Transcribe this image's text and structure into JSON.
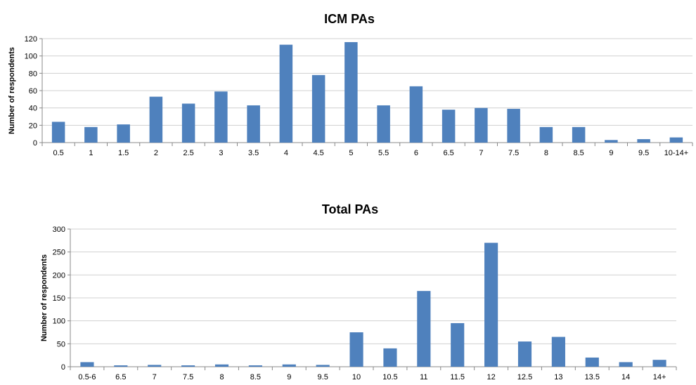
{
  "chart_data": [
    {
      "type": "bar",
      "title": "ICM PAs",
      "xlabel": "",
      "ylabel": "Number of respondents",
      "ylim": [
        0,
        120
      ],
      "yticks": [
        0,
        20,
        40,
        60,
        80,
        100,
        120
      ],
      "grid": true,
      "bar_color": "#4F81BD",
      "categories": [
        "0.5",
        "1",
        "1.5",
        "2",
        "2.5",
        "3",
        "3.5",
        "4",
        "4.5",
        "5",
        "5.5",
        "6",
        "6.5",
        "7",
        "7.5",
        "8",
        "8.5",
        "9",
        "9.5",
        "10-14+"
      ],
      "values": [
        24,
        18,
        21,
        53,
        45,
        59,
        43,
        113,
        78,
        116,
        43,
        65,
        38,
        40,
        39,
        18,
        18,
        3,
        4,
        6
      ]
    },
    {
      "type": "bar",
      "title": "Total PAs",
      "xlabel": "",
      "ylabel": "Number of respondents",
      "ylim": [
        0,
        300
      ],
      "yticks": [
        0,
        50,
        100,
        150,
        200,
        250,
        300
      ],
      "grid": true,
      "bar_color": "#4F81BD",
      "categories": [
        "0.5-6",
        "6.5",
        "7",
        "7.5",
        "8",
        "8.5",
        "9",
        "9.5",
        "10",
        "10.5",
        "11",
        "11.5",
        "12",
        "12.5",
        "13",
        "13.5",
        "14",
        "14+"
      ],
      "values": [
        10,
        3,
        4,
        3,
        5,
        3,
        5,
        4,
        75,
        40,
        165,
        95,
        270,
        55,
        65,
        20,
        10,
        15
      ]
    }
  ]
}
